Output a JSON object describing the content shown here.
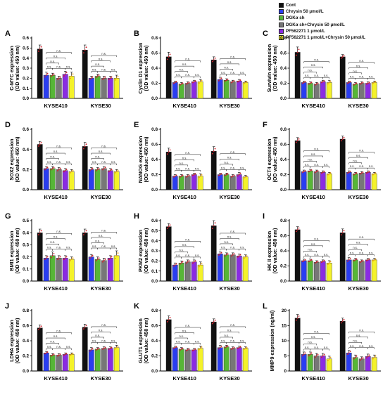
{
  "legend": [
    {
      "label": "Cont",
      "color": "#111111"
    },
    {
      "label": "Chrysin 50 μmol/L",
      "color": "#2a3df0"
    },
    {
      "label": "DGKα sh",
      "color": "#57b637"
    },
    {
      "label": "DGKα sh+Chrysin 50 μmol/L",
      "color": "#777777"
    },
    {
      "label": "PF562271 1 μmol/L",
      "color": "#8a2be2"
    },
    {
      "label": "PF562271 1 μmol/L+Chrysin 50 μmol/L",
      "color": "#f4f22a"
    }
  ],
  "significance_label": "n.s.",
  "chart_data": [
    {
      "type": "bar",
      "panel": "A",
      "ylabel": "C-MYC expression",
      "ylabel2": "(OD value: 450 nm)",
      "ylim": [
        0,
        0.6
      ],
      "yticks": [
        "0.0",
        "0.1",
        "0.2",
        "0.3",
        "0.4",
        "0.5",
        "0.6"
      ],
      "categories": [
        "KYSE410",
        "KYSE30"
      ],
      "series": [
        {
          "name": "Cont",
          "values": [
            0.49,
            0.48
          ],
          "errors": [
            0.04,
            0.05
          ]
        },
        {
          "name": "Chrysin 50 μmol/L",
          "values": [
            0.23,
            0.2
          ],
          "errors": [
            0.03,
            0.02
          ]
        },
        {
          "name": "DGKα sh",
          "values": [
            0.23,
            0.22
          ],
          "errors": [
            0.02,
            0.02
          ]
        },
        {
          "name": "DGKα sh+Chrysin 50 μmol/L",
          "values": [
            0.2,
            0.2
          ],
          "errors": [
            0.02,
            0.02
          ]
        },
        {
          "name": "PF562271 1 μmol/L",
          "values": [
            0.24,
            0.2
          ],
          "errors": [
            0.03,
            0.02
          ]
        },
        {
          "name": "PF562271 1 μmol/L+Chrysin 50 μmol/L",
          "values": [
            0.22,
            0.2
          ],
          "errors": [
            0.04,
            0.03
          ]
        }
      ]
    },
    {
      "type": "bar",
      "panel": "B",
      "ylabel": "Cyclin D1 expression",
      "ylabel2": "(OD value: 450 nm)",
      "ylim": [
        0,
        0.8
      ],
      "yticks": [
        "0.0",
        "0.2",
        "0.4",
        "0.6",
        "0.8"
      ],
      "categories": [
        "KYSE410",
        "KYSE30"
      ],
      "series": [
        {
          "name": "Cont",
          "values": [
            0.55,
            0.51
          ],
          "errors": [
            0.06,
            0.04
          ]
        },
        {
          "name": "Chrysin 50 μmol/L",
          "values": [
            0.21,
            0.25
          ],
          "errors": [
            0.02,
            0.03
          ]
        },
        {
          "name": "DGKα sh",
          "values": [
            0.19,
            0.24
          ],
          "errors": [
            0.02,
            0.02
          ]
        },
        {
          "name": "DGKα sh+Chrysin 50 μmol/L",
          "values": [
            0.2,
            0.22
          ],
          "errors": [
            0.02,
            0.02
          ]
        },
        {
          "name": "PF562271 1 μmol/L",
          "values": [
            0.22,
            0.23
          ],
          "errors": [
            0.02,
            0.02
          ]
        },
        {
          "name": "PF562271 1 μmol/L+Chrysin 50 μmol/L",
          "values": [
            0.22,
            0.21
          ],
          "errors": [
            0.03,
            0.02
          ]
        }
      ]
    },
    {
      "type": "bar",
      "panel": "C",
      "ylabel": "Survivin expression",
      "ylabel2": "(OD value: 450 nm)",
      "ylim": [
        0,
        0.8
      ],
      "yticks": [
        "0.0",
        "0.2",
        "0.4",
        "0.6",
        "0.8"
      ],
      "categories": [
        "KYSE410",
        "KYSE30"
      ],
      "series": [
        {
          "name": "Cont",
          "values": [
            0.61,
            0.55
          ],
          "errors": [
            0.07,
            0.03
          ]
        },
        {
          "name": "Chrysin 50 μmol/L",
          "values": [
            0.21,
            0.21
          ],
          "errors": [
            0.02,
            0.02
          ]
        },
        {
          "name": "DGKα sh",
          "values": [
            0.2,
            0.19
          ],
          "errors": [
            0.02,
            0.02
          ]
        },
        {
          "name": "DGKα sh+Chrysin 50 μmol/L",
          "values": [
            0.19,
            0.2
          ],
          "errors": [
            0.02,
            0.02
          ]
        },
        {
          "name": "PF562271 1 μmol/L",
          "values": [
            0.22,
            0.2
          ],
          "errors": [
            0.02,
            0.02
          ]
        },
        {
          "name": "PF562271 1 μmol/L+Chrysin 50 μmol/L",
          "values": [
            0.21,
            0.21
          ],
          "errors": [
            0.03,
            0.02
          ]
        }
      ]
    },
    {
      "type": "bar",
      "panel": "D",
      "ylabel": "SOX2 expression",
      "ylabel2": "(OD value: 450 nm)",
      "ylim": [
        0,
        0.6
      ],
      "yticks": [
        "0.0",
        "0.2",
        "0.4",
        "0.6"
      ],
      "categories": [
        "KYSE410",
        "KYSE30"
      ],
      "series": [
        {
          "name": "Cont",
          "values": [
            0.45,
            0.43
          ],
          "errors": [
            0.03,
            0.04
          ]
        },
        {
          "name": "Chrysin 50 μmol/L",
          "values": [
            0.21,
            0.2
          ],
          "errors": [
            0.02,
            0.02
          ]
        },
        {
          "name": "DGKα sh",
          "values": [
            0.21,
            0.2
          ],
          "errors": [
            0.02,
            0.02
          ]
        },
        {
          "name": "DGKα sh+Chrysin 50 μmol/L",
          "values": [
            0.2,
            0.21
          ],
          "errors": [
            0.02,
            0.02
          ]
        },
        {
          "name": "PF562271 1 μmol/L",
          "values": [
            0.19,
            0.19
          ],
          "errors": [
            0.02,
            0.02
          ]
        },
        {
          "name": "PF562271 1 μmol/L+Chrysin 50 μmol/L",
          "values": [
            0.18,
            0.18
          ],
          "errors": [
            0.02,
            0.02
          ]
        }
      ]
    },
    {
      "type": "bar",
      "panel": "E",
      "ylabel": "NANOG expression",
      "ylabel2": "(OD value: 450 nm)",
      "ylim": [
        0,
        0.8
      ],
      "yticks": [
        "0.0",
        "0.2",
        "0.4",
        "0.6",
        "0.8"
      ],
      "categories": [
        "KYSE410",
        "KYSE30"
      ],
      "series": [
        {
          "name": "Cont",
          "values": [
            0.5,
            0.51
          ],
          "errors": [
            0.05,
            0.06
          ]
        },
        {
          "name": "Chrysin 50 μmol/L",
          "values": [
            0.18,
            0.2
          ],
          "errors": [
            0.02,
            0.02
          ]
        },
        {
          "name": "DGKα sh",
          "values": [
            0.18,
            0.2
          ],
          "errors": [
            0.02,
            0.02
          ]
        },
        {
          "name": "DGKα sh+Chrysin 50 μmol/L",
          "values": [
            0.18,
            0.18
          ],
          "errors": [
            0.02,
            0.02
          ]
        },
        {
          "name": "PF562271 1 μmol/L",
          "values": [
            0.2,
            0.2
          ],
          "errors": [
            0.02,
            0.03
          ]
        },
        {
          "name": "PF562271 1 μmol/L+Chrysin 50 μmol/L",
          "values": [
            0.18,
            0.17
          ],
          "errors": [
            0.03,
            0.02
          ]
        }
      ]
    },
    {
      "type": "bar",
      "panel": "F",
      "ylabel": "OCT4 expression",
      "ylabel2": "(OD value: 450 nm)",
      "ylim": [
        0,
        0.8
      ],
      "yticks": [
        "0.0",
        "0.2",
        "0.4",
        "0.6",
        "0.8"
      ],
      "categories": [
        "KYSE410",
        "KYSE30"
      ],
      "series": [
        {
          "name": "Cont",
          "values": [
            0.65,
            0.67
          ],
          "errors": [
            0.04,
            0.04
          ]
        },
        {
          "name": "Chrysin 50 μmol/L",
          "values": [
            0.24,
            0.23
          ],
          "errors": [
            0.02,
            0.02
          ]
        },
        {
          "name": "DGKα sh",
          "values": [
            0.25,
            0.21
          ],
          "errors": [
            0.02,
            0.02
          ]
        },
        {
          "name": "DGKα sh+Chrysin 50 μmol/L",
          "values": [
            0.24,
            0.22
          ],
          "errors": [
            0.02,
            0.02
          ]
        },
        {
          "name": "PF562271 1 μmol/L",
          "values": [
            0.23,
            0.23
          ],
          "errors": [
            0.02,
            0.02
          ]
        },
        {
          "name": "PF562271 1 μmol/L+Chrysin 50 μmol/L",
          "values": [
            0.21,
            0.21
          ],
          "errors": [
            0.02,
            0.02
          ]
        }
      ]
    },
    {
      "type": "bar",
      "panel": "G",
      "ylabel": "BMI1 expression",
      "ylabel2": "(OD value: 450 nm)",
      "ylim": [
        0,
        0.5
      ],
      "yticks": [
        "0.0",
        "0.1",
        "0.2",
        "0.3",
        "0.4",
        "0.5"
      ],
      "categories": [
        "KYSE410",
        "KYSE30"
      ],
      "series": [
        {
          "name": "Cont",
          "values": [
            0.4,
            0.4
          ],
          "errors": [
            0.03,
            0.03
          ]
        },
        {
          "name": "Chrysin 50 μmol/L",
          "values": [
            0.19,
            0.2
          ],
          "errors": [
            0.02,
            0.02
          ]
        },
        {
          "name": "DGKα sh",
          "values": [
            0.21,
            0.18
          ],
          "errors": [
            0.03,
            0.02
          ]
        },
        {
          "name": "DGKα sh+Chrysin 50 μmol/L",
          "values": [
            0.19,
            0.17
          ],
          "errors": [
            0.02,
            0.02
          ]
        },
        {
          "name": "PF562271 1 μmol/L",
          "values": [
            0.19,
            0.19
          ],
          "errors": [
            0.02,
            0.02
          ]
        },
        {
          "name": "PF562271 1 μmol/L+Chrysin 50 μmol/L",
          "values": [
            0.18,
            0.21
          ],
          "errors": [
            0.02,
            0.04
          ]
        }
      ]
    },
    {
      "type": "bar",
      "panel": "H",
      "ylabel": "PKM2 expression",
      "ylabel2": "(OD value: 450 nm)",
      "ylim": [
        0,
        0.6
      ],
      "yticks": [
        "0.0",
        "0.1",
        "0.2",
        "0.3",
        "0.4",
        "0.5",
        "0.6"
      ],
      "categories": [
        "KYSE410",
        "KYSE30"
      ],
      "series": [
        {
          "name": "Cont",
          "values": [
            0.54,
            0.55
          ],
          "errors": [
            0.03,
            0.05
          ]
        },
        {
          "name": "Chrysin 50 μmol/L",
          "values": [
            0.16,
            0.27
          ],
          "errors": [
            0.02,
            0.02
          ]
        },
        {
          "name": "DGKα sh",
          "values": [
            0.18,
            0.26
          ],
          "errors": [
            0.02,
            0.02
          ]
        },
        {
          "name": "DGKα sh+Chrysin 50 μmol/L",
          "values": [
            0.19,
            0.26
          ],
          "errors": [
            0.02,
            0.02
          ]
        },
        {
          "name": "PF562271 1 μmol/L",
          "values": [
            0.19,
            0.25
          ],
          "errors": [
            0.02,
            0.02
          ]
        },
        {
          "name": "PF562271 1 μmol/L+Chrysin 50 μmol/L",
          "values": [
            0.16,
            0.24
          ],
          "errors": [
            0.03,
            0.02
          ]
        }
      ]
    },
    {
      "type": "bar",
      "panel": "I",
      "ylabel": "HK II expression",
      "ylabel2": "(OD value: 450 nm)",
      "ylim": [
        0,
        0.8
      ],
      "yticks": [
        "0.0",
        "0.2",
        "0.4",
        "0.6",
        "0.8"
      ],
      "categories": [
        "KYSE410",
        "KYSE30"
      ],
      "series": [
        {
          "name": "Cont",
          "values": [
            0.68,
            0.64
          ],
          "errors": [
            0.04,
            0.05
          ]
        },
        {
          "name": "Chrysin 50 μmol/L",
          "values": [
            0.27,
            0.28
          ],
          "errors": [
            0.02,
            0.03
          ]
        },
        {
          "name": "DGKα sh",
          "values": [
            0.27,
            0.28
          ],
          "errors": [
            0.02,
            0.02
          ]
        },
        {
          "name": "DGKα sh+Chrysin 50 μmol/L",
          "values": [
            0.25,
            0.26
          ],
          "errors": [
            0.02,
            0.02
          ]
        },
        {
          "name": "PF562271 1 μmol/L",
          "values": [
            0.26,
            0.28
          ],
          "errors": [
            0.02,
            0.02
          ]
        },
        {
          "name": "PF562271 1 μmol/L+Chrysin 50 μmol/L",
          "values": [
            0.24,
            0.28
          ],
          "errors": [
            0.03,
            0.02
          ]
        }
      ]
    },
    {
      "type": "bar",
      "panel": "J",
      "ylabel": "LDHA expression",
      "ylabel2": "(OD value: 450 nm)",
      "ylim": [
        0,
        0.8
      ],
      "yticks": [
        "0.0",
        "0.2",
        "0.4",
        "0.6",
        "0.8"
      ],
      "categories": [
        "KYSE410",
        "KYSE30"
      ],
      "series": [
        {
          "name": "Cont",
          "values": [
            0.57,
            0.58
          ],
          "errors": [
            0.04,
            0.04
          ]
        },
        {
          "name": "Chrysin 50 μmol/L",
          "values": [
            0.24,
            0.28
          ],
          "errors": [
            0.02,
            0.03
          ]
        },
        {
          "name": "DGKα sh",
          "values": [
            0.21,
            0.29
          ],
          "errors": [
            0.02,
            0.02
          ]
        },
        {
          "name": "DGKα sh+Chrysin 50 μmol/L",
          "values": [
            0.21,
            0.3
          ],
          "errors": [
            0.02,
            0.02
          ]
        },
        {
          "name": "PF562271 1 μmol/L",
          "values": [
            0.22,
            0.3
          ],
          "errors": [
            0.02,
            0.02
          ]
        },
        {
          "name": "PF562271 1 μmol/L+Chrysin 50 μmol/L",
          "values": [
            0.22,
            0.31
          ],
          "errors": [
            0.02,
            0.03
          ]
        }
      ]
    },
    {
      "type": "bar",
      "panel": "K",
      "ylabel": "GLUT1 expression",
      "ylabel2": "(OD value: 450 nm)",
      "ylim": [
        0,
        0.8
      ],
      "yticks": [
        "0.0",
        "0.2",
        "0.4",
        "0.6",
        "0.8"
      ],
      "categories": [
        "KYSE410",
        "KYSE30"
      ],
      "series": [
        {
          "name": "Cont",
          "values": [
            0.68,
            0.65
          ],
          "errors": [
            0.05,
            0.04
          ]
        },
        {
          "name": "Chrysin 50 μmol/L",
          "values": [
            0.31,
            0.31
          ],
          "errors": [
            0.02,
            0.03
          ]
        },
        {
          "name": "DGKα sh",
          "values": [
            0.29,
            0.32
          ],
          "errors": [
            0.02,
            0.02
          ]
        },
        {
          "name": "DGKα sh+Chrysin 50 μmol/L",
          "values": [
            0.28,
            0.3
          ],
          "errors": [
            0.02,
            0.02
          ]
        },
        {
          "name": "PF562271 1 μmol/L",
          "values": [
            0.28,
            0.31
          ],
          "errors": [
            0.02,
            0.02
          ]
        },
        {
          "name": "PF562271 1 μmol/L+Chrysin 50 μmol/L",
          "values": [
            0.3,
            0.3
          ],
          "errors": [
            0.03,
            0.02
          ]
        }
      ]
    },
    {
      "type": "bar",
      "panel": "L",
      "ylabel": "MMP9 expression (ng/ml)",
      "ylabel2": "",
      "ylim": [
        0,
        20
      ],
      "yticks": [
        "0",
        "5",
        "10",
        "15",
        "20"
      ],
      "categories": [
        "KYSE410",
        "KYSE30"
      ],
      "series": [
        {
          "name": "Cont",
          "values": [
            17.5,
            16.5
          ],
          "errors": [
            1.2,
            1.0
          ]
        },
        {
          "name": "Chrysin 50 μmol/L",
          "values": [
            5.5,
            6.0
          ],
          "errors": [
            0.8,
            0.8
          ]
        },
        {
          "name": "DGKα sh",
          "values": [
            5.5,
            4.5
          ],
          "errors": [
            0.8,
            0.8
          ]
        },
        {
          "name": "DGKα sh+Chrysin 50 μmol/L",
          "values": [
            5.0,
            4.0
          ],
          "errors": [
            0.8,
            0.7
          ]
        },
        {
          "name": "PF562271 1 μmol/L",
          "values": [
            5.0,
            4.8
          ],
          "errors": [
            0.8,
            0.8
          ]
        },
        {
          "name": "PF562271 1 μmol/L+Chrysin 50 μmol/L",
          "values": [
            4.0,
            4.5
          ],
          "errors": [
            0.9,
            0.8
          ]
        }
      ]
    }
  ]
}
